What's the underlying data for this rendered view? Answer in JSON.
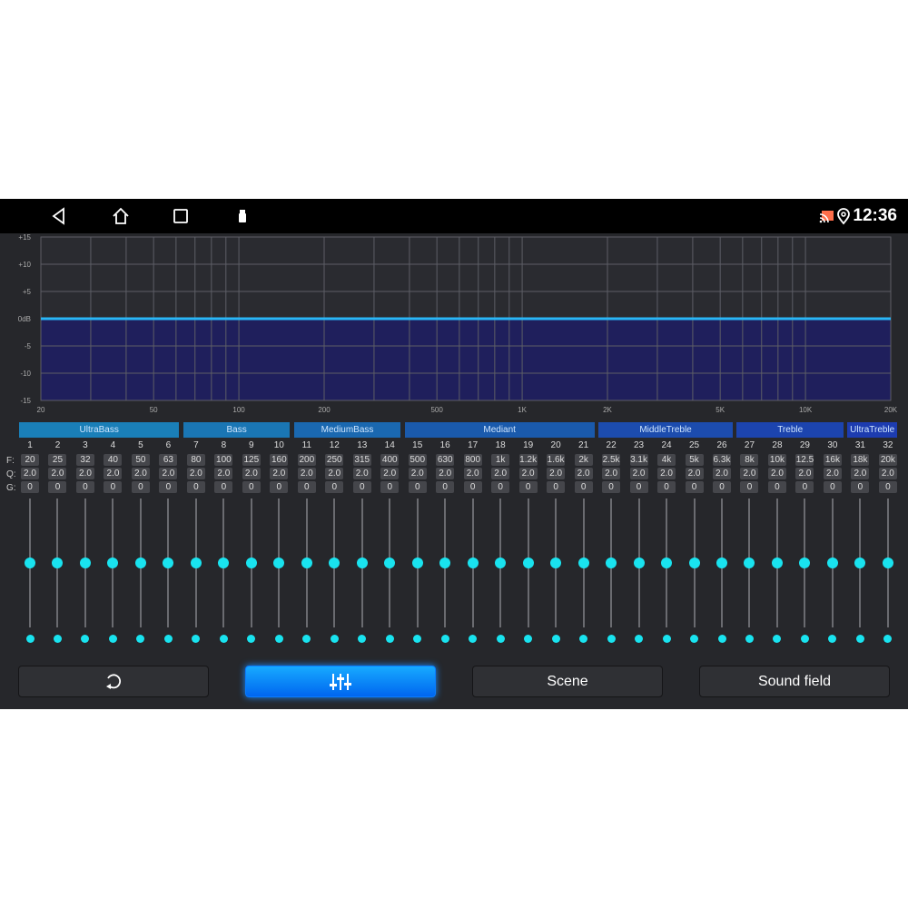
{
  "status_bar": {
    "time": "12:36",
    "nav_icons": [
      "back-icon",
      "home-icon",
      "recents-icon",
      "usb-icon"
    ],
    "status_icons": [
      "cast-icon",
      "location-icon"
    ]
  },
  "chart_data": {
    "type": "area",
    "xscale": "log",
    "xlim": [
      20,
      20000
    ],
    "ylim": [
      -15,
      15
    ],
    "grid": true,
    "ytick_labels": [
      "+15",
      "+10",
      "+5",
      "0dB",
      "-5",
      "-10",
      "-15"
    ],
    "yticks": [
      15,
      10,
      5,
      0,
      -5,
      -10,
      -15
    ],
    "xtick_labels": [
      "20",
      "50",
      "100",
      "200",
      "500",
      "1K",
      "2K",
      "5K",
      "10K",
      "20K"
    ],
    "xticks": [
      20,
      50,
      100,
      200,
      500,
      1000,
      2000,
      5000,
      10000,
      20000
    ],
    "series": [
      {
        "x": [
          20,
          20000
        ],
        "y": [
          0,
          0
        ]
      }
    ],
    "line_color": "#29b6f6",
    "fill_color": "#1f1f5c"
  },
  "bands": [
    {
      "label": "UltraBass",
      "from": 1,
      "to": 6,
      "color": "#1a7fb8"
    },
    {
      "label": "Bass",
      "from": 7,
      "to": 10,
      "color": "#1a76b4"
    },
    {
      "label": "MediumBass",
      "from": 11,
      "to": 14,
      "color": "#1a68b0"
    },
    {
      "label": "Mediant",
      "from": 15,
      "to": 21,
      "color": "#1a5aac"
    },
    {
      "label": "MiddleTreble",
      "from": 22,
      "to": 26,
      "color": "#1c4cae"
    },
    {
      "label": "Treble",
      "from": 27,
      "to": 30,
      "color": "#1c44ae"
    },
    {
      "label": "UltraTreble",
      "from": 31,
      "to": 32,
      "color": "#1d3cb0"
    }
  ],
  "row_labels": {
    "f": "F:",
    "q": "Q:",
    "g": "G:"
  },
  "channels": {
    "freq": [
      "20",
      "25",
      "32",
      "40",
      "50",
      "63",
      "80",
      "100",
      "125",
      "160",
      "200",
      "250",
      "315",
      "400",
      "500",
      "630",
      "800",
      "1k",
      "1.2k",
      "1.6k",
      "2k",
      "2.5k",
      "3.1k",
      "4k",
      "5k",
      "6.3k",
      "8k",
      "10k",
      "12.5",
      "16k",
      "18k",
      "20k"
    ],
    "q": "2.0",
    "gain": "0",
    "slider_level": 0.5
  },
  "buttons": [
    {
      "icon": "reset-icon"
    },
    {
      "icon": "equalizer-icon",
      "active": true
    },
    {
      "label": "Scene"
    },
    {
      "label": "Sound field"
    }
  ]
}
